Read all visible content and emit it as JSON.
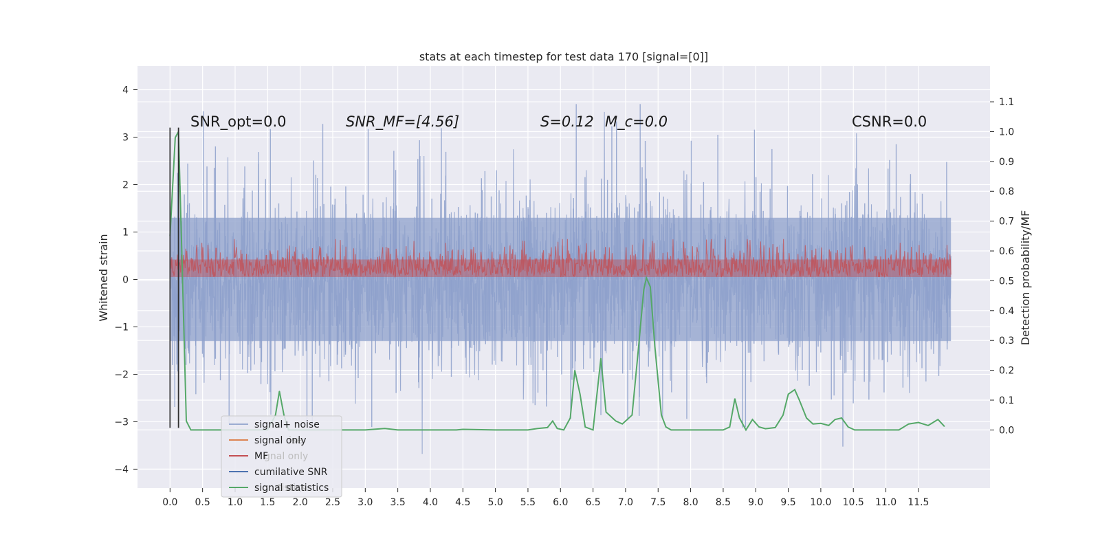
{
  "chart_data": {
    "type": "line",
    "title": "stats at each timestep for test data 170 [signal=[0]]",
    "xlabel": "",
    "ylabel": "Whitened strain",
    "y2label": "Detection probability/MF",
    "xlim": [
      -0.5,
      12.6
    ],
    "ylim": [
      -4.4,
      4.5
    ],
    "y2lim": [
      -0.195,
      1.22
    ],
    "xticks": [
      0.0,
      0.5,
      1.0,
      1.5,
      2.0,
      2.5,
      3.0,
      3.5,
      4.0,
      4.5,
      5.0,
      5.5,
      6.0,
      6.5,
      7.0,
      7.5,
      8.0,
      8.5,
      9.0,
      9.5,
      10.0,
      10.5,
      11.0,
      11.5
    ],
    "xtick_labels": [
      "0.0",
      "0.5",
      "1.0",
      "1.5",
      "2.0",
      "2.5",
      "3.0",
      "3.5",
      "4.0",
      "4.5",
      "5.0",
      "5.5",
      "6.0",
      "6.5",
      "7.0",
      "7.5",
      "8.0",
      "8.5",
      "9.0",
      "9.5",
      "10.0",
      "10.5",
      "11.0",
      "11.5"
    ],
    "yticks": [
      -4,
      -3,
      -2,
      -1,
      0,
      1,
      2,
      3,
      4
    ],
    "ytick_labels": [
      "−4",
      "−3",
      "−2",
      "−1",
      "0",
      "1",
      "2",
      "3",
      "4"
    ],
    "y2ticks": [
      0.0,
      0.1,
      0.2,
      0.3,
      0.4,
      0.5,
      0.6,
      0.7,
      0.8,
      0.9,
      1.0,
      1.1
    ],
    "y2tick_labels": [
      "0.0",
      "0.1",
      "0.2",
      "0.3",
      "0.4",
      "0.5",
      "0.6",
      "0.7",
      "0.8",
      "0.9",
      "1.0",
      "1.1"
    ],
    "grid": true,
    "legend_position": "lower-left",
    "annotations": {
      "snr_opt": "SNR_opt=0.0",
      "snr_mf": "SNR_MF=[4.56]",
      "s_value": "S=0.12",
      "mc_value": "M_c=0.0",
      "csnr": "CSNR=0.0"
    },
    "series": [
      {
        "name": "signal+ noise",
        "color": "#8da0cb",
        "kind": "noise",
        "x_range": [
          0.0,
          12.0
        ],
        "amplitude_typical": 1.3,
        "peak_max": 4.1,
        "peak_min": -4.0
      },
      {
        "name": "signal only",
        "color": "#dd8452",
        "kind": "flat",
        "value": 0.0
      },
      {
        "name": "MF",
        "color": "#c44e52",
        "kind": "mf",
        "x_range": [
          0.0,
          12.0
        ],
        "range": [
          0.0,
          0.85
        ]
      },
      {
        "name": "cumilative SNR",
        "color": "#4c72b0",
        "kind": "flat",
        "value": 0.0
      },
      {
        "name": "signal statistics",
        "color": "#55a868",
        "axis": "right",
        "x": [
          0.0,
          0.08,
          0.13,
          0.18,
          0.25,
          0.32,
          0.5,
          1.0,
          1.5,
          1.62,
          1.68,
          1.75,
          1.82,
          2.0,
          3.0,
          3.3,
          3.5,
          3.7,
          4.0,
          4.4,
          4.5,
          5.0,
          5.5,
          5.65,
          5.8,
          5.88,
          5.95,
          6.05,
          6.15,
          6.22,
          6.3,
          6.38,
          6.5,
          6.62,
          6.7,
          6.85,
          6.95,
          7.1,
          7.2,
          7.28,
          7.32,
          7.38,
          7.45,
          7.55,
          7.62,
          7.7,
          8.0,
          8.5,
          8.6,
          8.68,
          8.75,
          8.85,
          8.95,
          9.05,
          9.15,
          9.3,
          9.42,
          9.5,
          9.6,
          9.67,
          9.78,
          9.88,
          10.0,
          10.12,
          10.22,
          10.32,
          10.42,
          10.52,
          10.62,
          10.8,
          11.0,
          11.2,
          11.35,
          11.5,
          11.65,
          11.8,
          11.9
        ],
        "y": [
          0.65,
          0.98,
          1.0,
          0.6,
          0.03,
          0.0,
          0.0,
          0.0,
          0.0,
          0.05,
          0.13,
          0.05,
          0.0,
          0.0,
          0.0,
          0.005,
          0.0,
          0.0,
          0.0,
          0.0,
          0.002,
          0.0,
          0.0,
          0.005,
          0.008,
          0.03,
          0.005,
          0.0,
          0.04,
          0.2,
          0.12,
          0.01,
          0.0,
          0.24,
          0.06,
          0.03,
          0.02,
          0.05,
          0.28,
          0.47,
          0.51,
          0.48,
          0.28,
          0.05,
          0.01,
          0.0,
          0.0,
          0.0,
          0.01,
          0.105,
          0.04,
          0.0,
          0.035,
          0.01,
          0.004,
          0.008,
          0.05,
          0.12,
          0.135,
          0.1,
          0.04,
          0.02,
          0.022,
          0.015,
          0.035,
          0.04,
          0.01,
          0.0,
          0.0,
          0.0,
          0.0,
          0.0,
          0.02,
          0.025,
          0.015,
          0.035,
          0.012
        ]
      }
    ],
    "vlines": [
      {
        "name": "onset-marker",
        "x": 0.0,
        "y_from": -3.13,
        "y_to": 3.2,
        "color": "#404040"
      },
      {
        "name": "end-marker",
        "x": 0.13,
        "y_from": -3.13,
        "y_to": 3.2,
        "color": "#303030"
      }
    ]
  }
}
